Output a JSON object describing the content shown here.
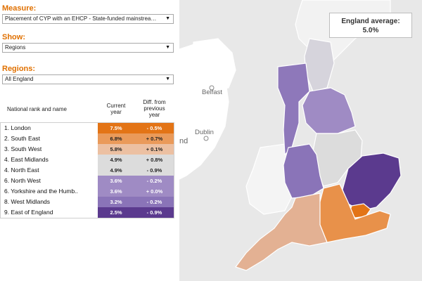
{
  "controls": {
    "measure_label": "Measure:",
    "measure_value": "Placement of CYP with an EHCP - State-funded mainstream ...",
    "show_label": "Show:",
    "show_value": "Regions",
    "regions_label": "Regions:",
    "regions_value": "All England"
  },
  "table": {
    "col_name": "National rank and name",
    "col_current": [
      "Current",
      "year"
    ],
    "col_diff": [
      "Diff. from",
      "previous",
      "year"
    ],
    "rows": [
      {
        "name": "1. London",
        "current": "7.5%",
        "diff": "- 0.5%",
        "bg": "#e37416",
        "fg": "#ffffff"
      },
      {
        "name": "2. South East",
        "current": "6.8%",
        "diff": "+ 0.7%",
        "bg": "#ea9a5a",
        "fg": "#222222"
      },
      {
        "name": "3. South West",
        "current": "5.8%",
        "diff": "+ 0.1%",
        "bg": "#ecc0a2",
        "fg": "#222222"
      },
      {
        "name": "4. East Midlands",
        "current": "4.9%",
        "diff": "+ 0.8%",
        "bg": "#dcdcdc",
        "fg": "#222222"
      },
      {
        "name": "4. North East",
        "current": "4.9%",
        "diff": "- 0.9%",
        "bg": "#dcdcdc",
        "fg": "#222222"
      },
      {
        "name": "6. North West",
        "current": "3.6%",
        "diff": "- 0.2%",
        "bg": "#9f8bc4",
        "fg": "#ffffff"
      },
      {
        "name": "6. Yorkshire and the Humb..",
        "current": "3.6%",
        "diff": "+ 0.0%",
        "bg": "#9f8bc4",
        "fg": "#ffffff"
      },
      {
        "name": "8. West Midlands",
        "current": "3.2%",
        "diff": "- 0.2%",
        "bg": "#8a74b8",
        "fg": "#ffffff"
      },
      {
        "name": "9. East of England",
        "current": "2.5%",
        "diff": "- 0.9%",
        "bg": "#5b3a8e",
        "fg": "#ffffff"
      }
    ]
  },
  "map": {
    "avg_title": "England average:",
    "avg_value": "5.0%",
    "city_belfast": "Belfast",
    "city_dublin": "Dublin",
    "partial_label": "nd",
    "colors": {
      "land": "#ffffff",
      "sea": "#e8e8e8",
      "scotland": "#f2f2f2",
      "north_east": "#d6d4dc",
      "north_west": "#8e78ba",
      "yorkshire": "#9f8bc4",
      "east_midlands": "#dcdcdc",
      "west_midlands": "#8a74b8",
      "east_of_england": "#5b3a8e",
      "london": "#e37416",
      "south_east": "#e8914a",
      "south_west": "#e3b193",
      "wales": "#f4f4f4"
    }
  }
}
